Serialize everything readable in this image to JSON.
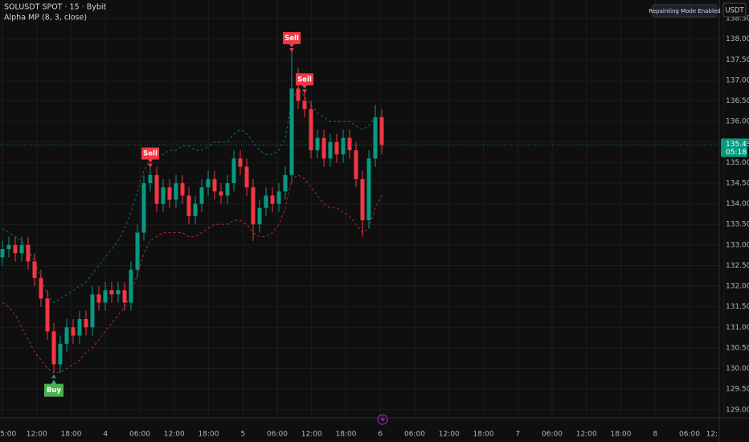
{
  "chart_data": {
    "type": "candlestick",
    "title": "SOLUSDT SPOT · 15 · Bybit",
    "subtitle": "Alpha MP (8, 3, close)",
    "annotations": [
      "Repainting Mode Enabled"
    ],
    "currency": "USDT",
    "last_price": {
      "value": 135.43,
      "label": "135.43"
    },
    "countdown": "05:18",
    "up_color": "#089981",
    "down_color": "#f23645",
    "grid": true,
    "ylim": [
      128.8,
      138.95
    ],
    "yticks": [
      {
        "value": 129.0,
        "label": "129.00"
      },
      {
        "value": 129.5,
        "label": "129.50"
      },
      {
        "value": 130.0,
        "label": "130.00"
      },
      {
        "value": 130.5,
        "label": "130.50"
      },
      {
        "value": 131.0,
        "label": "131.00"
      },
      {
        "value": 131.5,
        "label": "131.50"
      },
      {
        "value": 132.0,
        "label": "132.00"
      },
      {
        "value": 132.5,
        "label": "132.50"
      },
      {
        "value": 133.0,
        "label": "133.00"
      },
      {
        "value": 133.5,
        "label": "133.50"
      },
      {
        "value": 134.0,
        "label": "134.00"
      },
      {
        "value": 134.5,
        "label": "134.50"
      },
      {
        "value": 135.0,
        "label": "135.00"
      },
      {
        "value": 135.5,
        "label": "135.50"
      },
      {
        "value": 136.0,
        "label": "136.00"
      },
      {
        "value": 136.5,
        "label": "136.50"
      },
      {
        "value": 137.0,
        "label": "137.00"
      },
      {
        "value": 137.5,
        "label": "137.50"
      },
      {
        "value": 138.0,
        "label": "138.00"
      },
      {
        "value": 138.5,
        "label": "138.50"
      }
    ],
    "time_labels": [
      "5:00",
      "12:00",
      "18:00",
      "4",
      "06:00",
      "12:00",
      "18:00",
      "5",
      "06:00",
      "12:00",
      "18:00",
      "6",
      "06:00",
      "12:00",
      "18:00",
      "7",
      "06:00",
      "12:00",
      "18:00",
      "8",
      "06:00",
      "12:"
    ],
    "open": [
      132.7,
      132.9,
      133.0,
      132.8,
      133.0,
      132.6,
      132.2,
      131.7,
      130.9,
      130.1,
      130.6,
      131.0,
      130.8,
      131.2,
      131.0,
      131.8,
      131.6,
      131.9,
      131.8,
      131.9,
      131.6,
      132.4,
      133.3,
      134.5,
      134.7,
      134.0,
      134.4,
      134.1,
      134.5,
      134.2,
      133.7,
      134.0,
      134.4,
      134.6,
      134.3,
      134.2,
      134.5,
      135.1,
      134.9,
      134.4,
      133.5,
      133.9,
      134.2,
      134.0,
      134.3,
      134.7,
      136.8,
      136.5,
      136.3,
      135.3,
      135.6,
      135.1,
      135.5,
      135.2,
      135.6,
      135.3,
      134.6,
      133.6,
      135.1,
      136.1
    ],
    "high": [
      133.1,
      133.2,
      133.2,
      133.2,
      133.2,
      132.8,
      132.4,
      131.9,
      131.1,
      130.8,
      131.2,
      131.2,
      131.4,
      131.4,
      132.0,
      132.0,
      132.1,
      132.1,
      132.1,
      132.1,
      132.6,
      133.5,
      134.7,
      134.9,
      134.9,
      134.6,
      134.6,
      134.7,
      134.7,
      134.4,
      134.2,
      134.6,
      134.8,
      134.8,
      134.5,
      134.7,
      135.3,
      135.3,
      135.1,
      134.6,
      134.1,
      134.4,
      134.4,
      134.5,
      134.9,
      137.7,
      137.3,
      136.7,
      136.5,
      135.8,
      135.8,
      135.7,
      135.7,
      135.8,
      135.8,
      135.5,
      134.8,
      135.3,
      136.4,
      136.3
    ],
    "low": [
      132.5,
      132.7,
      132.6,
      132.6,
      132.4,
      132.0,
      131.5,
      130.7,
      129.9,
      129.9,
      130.4,
      130.6,
      130.6,
      130.8,
      130.8,
      131.4,
      131.4,
      131.6,
      131.6,
      131.4,
      131.4,
      132.2,
      133.1,
      134.3,
      133.8,
      133.8,
      133.9,
      133.9,
      134.0,
      133.5,
      133.5,
      133.8,
      134.2,
      134.1,
      134.0,
      134.0,
      134.3,
      134.7,
      134.2,
      133.1,
      133.3,
      133.7,
      133.8,
      133.8,
      134.1,
      134.5,
      136.3,
      136.1,
      135.1,
      135.1,
      134.9,
      134.9,
      135.0,
      135.0,
      135.1,
      134.4,
      133.2,
      133.4,
      134.9,
      135.2
    ],
    "close": [
      132.9,
      133.0,
      132.8,
      133.0,
      132.6,
      132.2,
      131.7,
      130.9,
      130.1,
      130.6,
      131.0,
      130.8,
      131.2,
      131.0,
      131.8,
      131.6,
      131.9,
      131.8,
      131.9,
      131.6,
      132.4,
      133.3,
      134.5,
      134.7,
      134.0,
      134.4,
      134.1,
      134.5,
      134.2,
      133.7,
      134.0,
      134.4,
      134.6,
      134.3,
      134.2,
      134.5,
      135.1,
      134.9,
      134.4,
      133.5,
      133.9,
      134.2,
      134.0,
      134.3,
      134.7,
      136.8,
      136.5,
      136.3,
      135.3,
      135.6,
      135.1,
      135.5,
      135.2,
      135.6,
      135.3,
      134.6,
      133.6,
      135.1,
      136.1,
      135.43
    ],
    "bands": [
      {
        "name": "upper",
        "color": "#089981",
        "values": [
          133.4,
          133.3,
          133.2,
          133.1,
          132.9,
          132.6,
          132.2,
          131.8,
          131.6,
          131.7,
          131.8,
          131.9,
          132.0,
          132.1,
          132.3,
          132.5,
          132.7,
          132.9,
          133.1,
          133.4,
          133.8,
          134.3,
          134.8,
          135.1,
          135.2,
          135.2,
          135.3,
          135.3,
          135.4,
          135.4,
          135.3,
          135.3,
          135.4,
          135.5,
          135.5,
          135.5,
          135.7,
          135.8,
          135.7,
          135.5,
          135.3,
          135.2,
          135.2,
          135.3,
          135.6,
          136.5,
          136.8,
          136.6,
          136.4,
          136.2,
          136.1,
          136.0,
          136.0,
          136.0,
          136.0,
          135.9,
          135.8,
          135.9,
          136.1,
          136.1
        ]
      },
      {
        "name": "lower",
        "color": "#f23645",
        "values": [
          131.6,
          131.5,
          131.3,
          131.0,
          130.7,
          130.4,
          130.2,
          130.0,
          129.9,
          129.9,
          130.0,
          130.1,
          130.2,
          130.4,
          130.5,
          130.7,
          130.9,
          131.1,
          131.3,
          131.5,
          131.8,
          132.3,
          132.8,
          133.1,
          133.2,
          133.3,
          133.3,
          133.3,
          133.3,
          133.2,
          133.2,
          133.3,
          133.4,
          133.5,
          133.5,
          133.5,
          133.6,
          133.6,
          133.5,
          133.3,
          133.2,
          133.2,
          133.3,
          133.5,
          133.9,
          134.6,
          134.7,
          134.6,
          134.4,
          134.2,
          134.0,
          133.9,
          133.9,
          133.8,
          133.7,
          133.5,
          133.3,
          133.4,
          133.9,
          134.2
        ]
      }
    ],
    "signals": [
      null,
      null,
      null,
      null,
      null,
      null,
      null,
      null,
      "Buy",
      null,
      null,
      null,
      null,
      null,
      null,
      null,
      null,
      null,
      null,
      null,
      null,
      null,
      null,
      "Sell",
      null,
      null,
      null,
      null,
      null,
      null,
      null,
      null,
      null,
      null,
      null,
      null,
      null,
      null,
      null,
      null,
      null,
      null,
      null,
      null,
      null,
      "Sell",
      null,
      "Sell",
      null,
      null,
      null,
      null,
      null,
      null,
      null,
      null,
      null,
      null,
      null,
      null
    ]
  }
}
